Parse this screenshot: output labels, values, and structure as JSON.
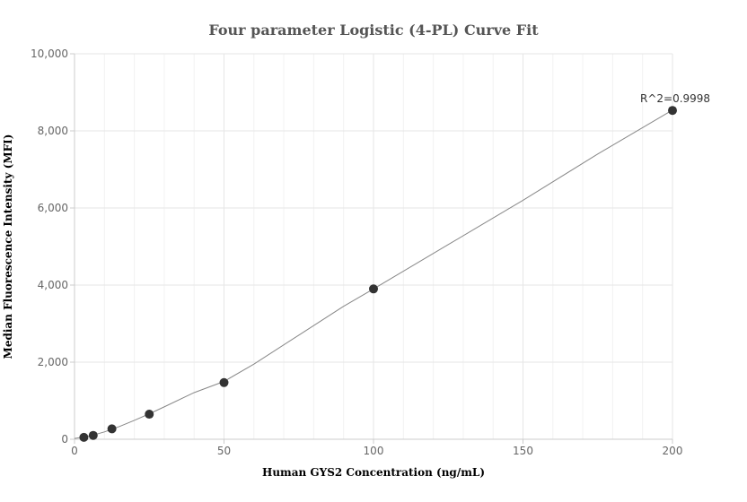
{
  "chart_data": {
    "type": "scatter",
    "title": "Four parameter Logistic (4-PL) Curve Fit",
    "xlabel": "Human GYS2 Concentration (ng/mL)",
    "ylabel": "Median Fluorescence Intensity (MFI)",
    "xlim": [
      0,
      200
    ],
    "ylim": [
      0,
      10000
    ],
    "xticks": [
      0,
      50,
      100,
      150,
      200
    ],
    "xtick_labels": [
      "0",
      "50",
      "100",
      "150",
      "200"
    ],
    "yticks": [
      0,
      2000,
      4000,
      6000,
      8000,
      10000
    ],
    "ytick_labels": [
      "0",
      "2,000",
      "4,000",
      "6,000",
      "8,000",
      "10,000"
    ],
    "grid": true,
    "series": [
      {
        "type": "scatter",
        "x": [
          3.125,
          6.25,
          12.5,
          25,
          50,
          100,
          200
        ],
        "y": [
          50,
          100,
          270,
          650,
          1470,
          3900,
          8530
        ]
      },
      {
        "type": "line",
        "x": [
          0,
          5,
          10,
          15,
          20,
          25,
          30,
          40,
          50,
          60,
          75,
          90,
          100,
          125,
          150,
          175,
          200
        ],
        "y": [
          20,
          80,
          190,
          330,
          490,
          660,
          840,
          1210,
          1500,
          1950,
          2700,
          3450,
          3900,
          5050,
          6200,
          7400,
          8540
        ]
      }
    ],
    "annotations": [
      {
        "text": "R^2=0.9998",
        "x": 200,
        "y": 8530
      }
    ],
    "colors": {
      "marker": "#333333",
      "curve": "#888888",
      "grid": "#e6e6e6",
      "axis": "#cccccc"
    }
  }
}
